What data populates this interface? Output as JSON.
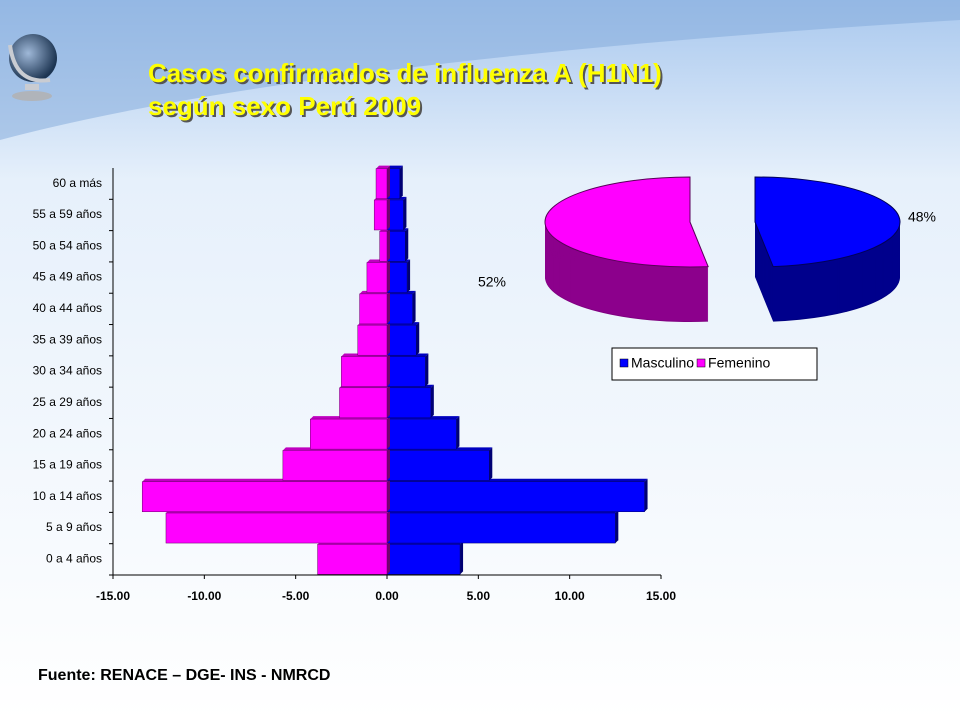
{
  "slide": {
    "title_lines": [
      "Casos confirmados de influenza A (H1N1)",
      "según sexo Perú 2009"
    ],
    "source": "Fuente: RENACE – DGE- INS - NMRCD"
  },
  "chart_data": [
    {
      "type": "bar",
      "orientation": "horizontal",
      "categories": [
        "0 a 4 años",
        "5 a 9 años",
        "10 a 14 años",
        "15 a 19 años",
        "20 a 24 años",
        "25 a 29 años",
        "30 a 34 años",
        "35 a 39 años",
        "40 a 44 años",
        "45 a 49 años",
        "50 a 54 años",
        "55 a 59 años",
        "60 a más"
      ],
      "series": [
        {
          "color": "#0000ff",
          "values": [
            4.0,
            12.5,
            14.1,
            5.6,
            3.8,
            2.4,
            2.1,
            1.6,
            1.4,
            1.1,
            1.0,
            0.9,
            0.7
          ]
        },
        {
          "color": "#ff00ff",
          "values": [
            -3.8,
            -12.1,
            -13.4,
            -5.7,
            -4.2,
            -2.6,
            -2.5,
            -1.6,
            -1.5,
            -1.1,
            -0.4,
            -0.7,
            -0.6
          ]
        }
      ],
      "xlim": [
        -15,
        15
      ],
      "xticks": [
        {
          "value": -15,
          "label": "-15.00"
        },
        {
          "value": -10,
          "label": "-10.00"
        },
        {
          "value": -5,
          "label": "-5.00"
        },
        {
          "value": 0,
          "label": "0.00"
        },
        {
          "value": 5,
          "label": "5.00"
        },
        {
          "value": 10,
          "label": "10.00"
        },
        {
          "value": 15,
          "label": "15.00"
        }
      ]
    },
    {
      "type": "pie",
      "categories": [
        "Masculino",
        "Femenino"
      ],
      "values": [
        48,
        52
      ],
      "value_labels": [
        "48%",
        "52%"
      ],
      "colors": [
        "#0000ff",
        "#ff00ff"
      ]
    }
  ]
}
